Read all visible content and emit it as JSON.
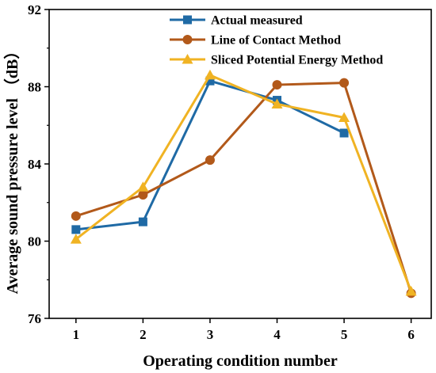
{
  "chart_data": {
    "type": "line",
    "title": "",
    "xlabel": "Operating condition number",
    "ylabel": "Average sound pressure level （dB）",
    "x": [
      1,
      2,
      3,
      4,
      5,
      6
    ],
    "xlim": [
      0.6,
      6.3
    ],
    "ylim": [
      76,
      92
    ],
    "xticks": [
      "1",
      "2",
      "3",
      "4",
      "5",
      "6"
    ],
    "yticks": [
      "76",
      "80",
      "84",
      "88",
      "92"
    ],
    "grid": false,
    "legend_position": "top-right",
    "series": [
      {
        "name": "Actual measured",
        "marker": "square",
        "color": "#1f6aa5",
        "values": [
          80.6,
          81.0,
          88.3,
          87.3,
          85.6,
          null
        ]
      },
      {
        "name": "Line of Contact Method",
        "marker": "circle",
        "color": "#b2591a",
        "values": [
          81.3,
          82.4,
          84.2,
          88.1,
          88.2,
          77.3
        ]
      },
      {
        "name": "Sliced Potential Energy Method",
        "marker": "triangle",
        "color": "#f0b323",
        "values": [
          80.1,
          82.8,
          88.6,
          87.1,
          86.4,
          77.4
        ]
      }
    ]
  }
}
